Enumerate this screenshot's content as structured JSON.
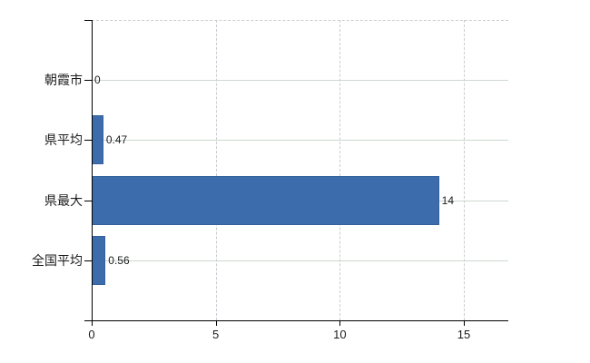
{
  "chart_data": {
    "type": "bar",
    "orientation": "horizontal",
    "title": "",
    "categories": [
      "朝霞市",
      "県平均",
      "県最大",
      "全国平均"
    ],
    "values": [
      0,
      0.47,
      14,
      0.56
    ],
    "value_labels": [
      "0",
      "0.47",
      "14",
      "0.56"
    ],
    "xtick_labels": [
      "0",
      "5",
      "10",
      "15"
    ],
    "xtick_values": [
      0,
      5,
      10,
      15
    ],
    "xlim": [
      0,
      16.8
    ],
    "grid": {
      "horizontal": "solid line at each category center",
      "vertical": "dashed line at each nonzero x tick",
      "top_border": "dashed"
    },
    "legend": "none",
    "colors": {
      "bar_fill": "#3c6cab",
      "bar_border": "#35619c",
      "axis": "#000000",
      "grid_horizontal": "#cfd8cf",
      "grid_vertical": "#c9ccd2",
      "top_border": "#d2cccc",
      "text": "#1c1c1c",
      "background": "#ffffff"
    }
  }
}
